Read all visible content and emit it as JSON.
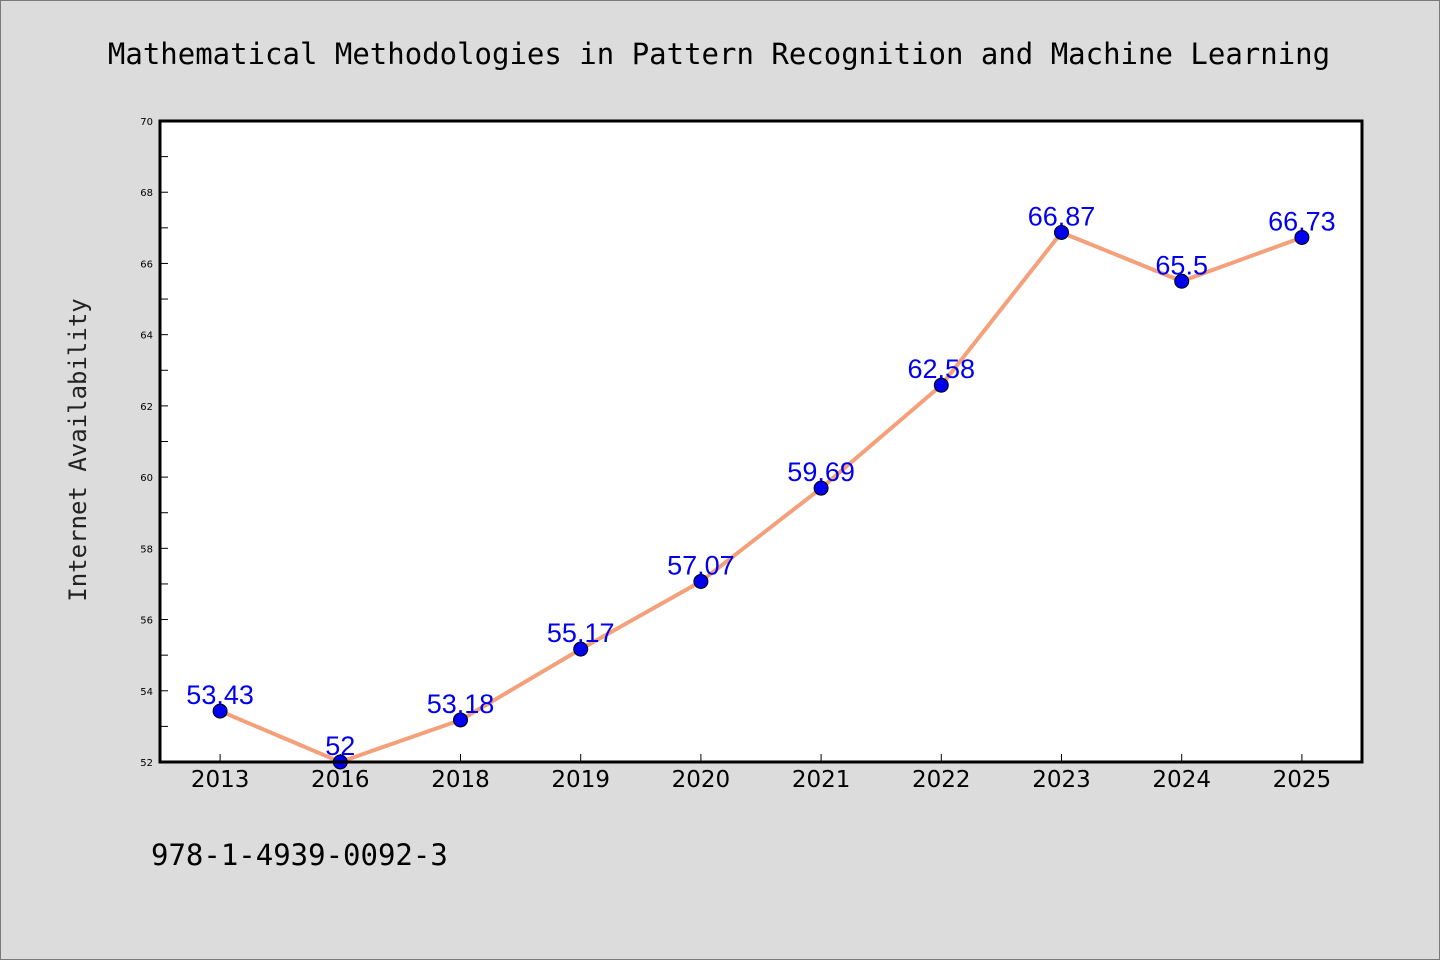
{
  "chart_data": {
    "type": "line",
    "title": "Mathematical Methodologies in Pattern Recognition and Machine Learning",
    "xlabel": "",
    "ylabel": "Internet Availability",
    "categories": [
      "2013",
      "2016",
      "2018",
      "2019",
      "2020",
      "2021",
      "2022",
      "2023",
      "2024",
      "2025"
    ],
    "series": [
      {
        "values": [
          53.43,
          52,
          53.18,
          55.17,
          57.07,
          59.69,
          62.58,
          66.87,
          65.5,
          66.73
        ],
        "labels": [
          "53.43",
          "52",
          "53.18",
          "55.17",
          "57.07",
          "59.69",
          "62.58",
          "66.87",
          "65.5",
          "66.73"
        ]
      }
    ],
    "ylim": [
      52,
      70
    ],
    "yticks": [
      52,
      54,
      56,
      58,
      60,
      62,
      64,
      66,
      68,
      70
    ],
    "grid": false,
    "line_color": "#f4a07a",
    "marker_color": "#0000ee"
  },
  "footer": {
    "isbn": "978-1-4939-0092-3"
  }
}
